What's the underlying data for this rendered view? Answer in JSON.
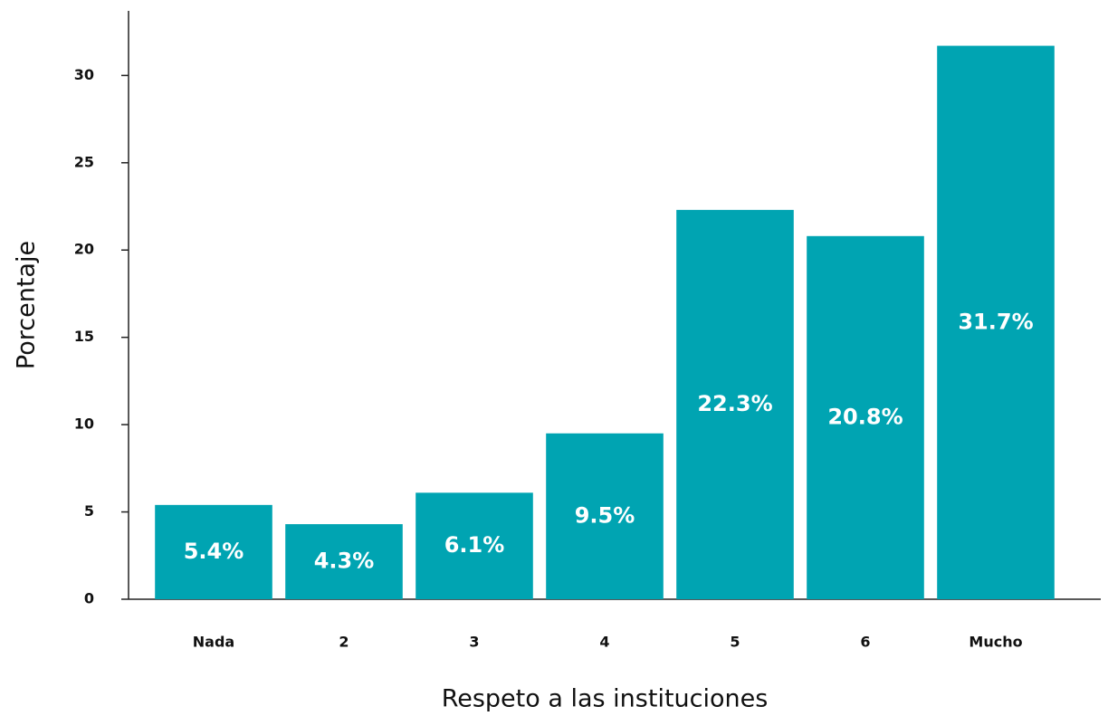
{
  "chart_data": {
    "type": "bar",
    "x_label": "Respeto a las instituciones",
    "y_label": "Porcentaje",
    "categories": [
      "Nada",
      "2",
      "3",
      "4",
      "5",
      "6",
      "Mucho"
    ],
    "values": [
      5.4,
      4.3,
      6.1,
      9.5,
      22.3,
      20.8,
      31.7
    ],
    "value_labels": [
      "5.4%",
      "4.3%",
      "6.1%",
      "9.5%",
      "22.3%",
      "20.8%",
      "31.7%"
    ],
    "color": "#00a4b2",
    "ylim": [
      0,
      33.7
    ],
    "yticks": [
      0,
      5,
      10,
      15,
      20,
      25,
      30
    ]
  }
}
